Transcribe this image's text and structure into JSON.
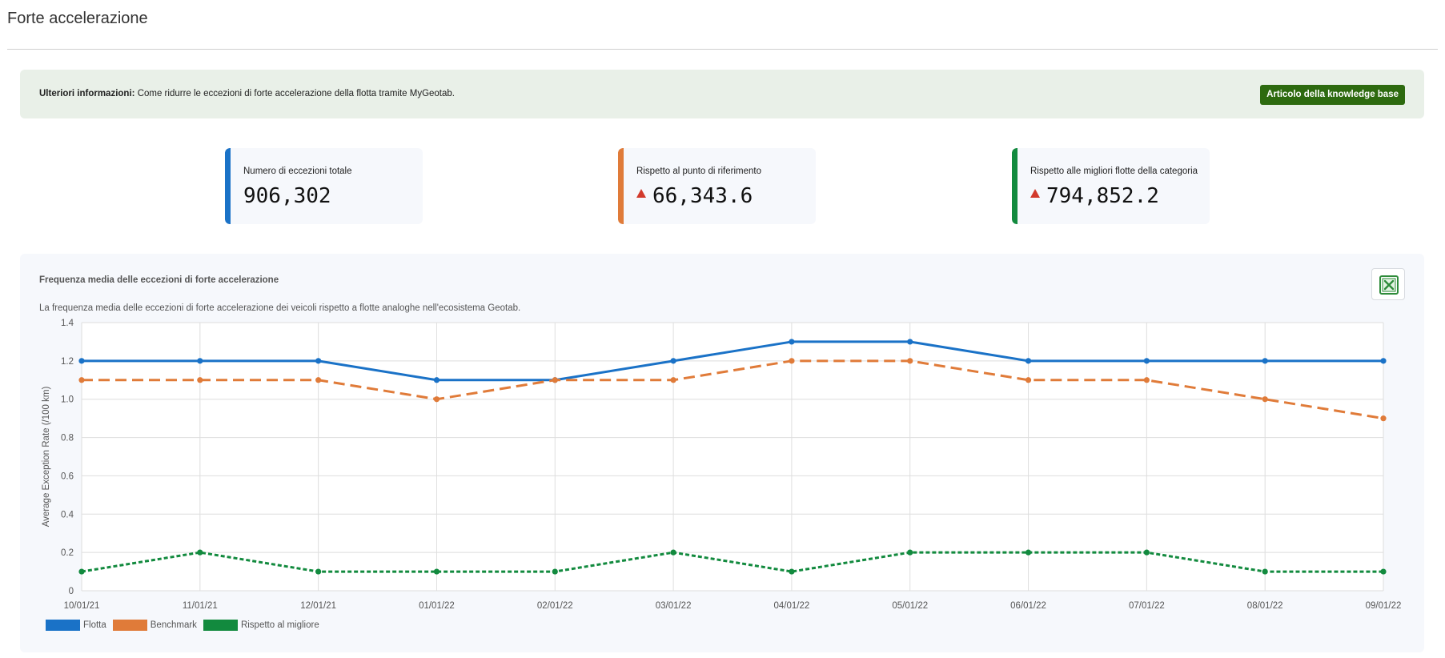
{
  "page": {
    "title": "Forte accelerazione"
  },
  "banner": {
    "prefix": "Ulteriori informazioni:",
    "text": "Come ridurre le eccezioni di forte accelerazione della flotta tramite MyGeotab.",
    "button_label": "Articolo della knowledge base"
  },
  "kpis": [
    {
      "label": "Numero di eccezioni totale",
      "value": "906,302",
      "color": "#1a72c7",
      "arrow": false
    },
    {
      "label": "Rispetto al punto di riferimento",
      "value": "66,343.6",
      "color": "#e07b39",
      "arrow": true
    },
    {
      "label": "Rispetto alle migliori flotte della categoria",
      "value": "794,852.2",
      "color": "#128a3e",
      "arrow": true
    }
  ],
  "chart_panel": {
    "title": "Frequenza media delle eccezioni di forte accelerazione",
    "subtitle": "La frequenza media delle eccezioni di forte accelerazione dei veicoli rispetto a flotte analoghe nell'ecosistema Geotab.",
    "export_icon": "excel-icon"
  },
  "chart_data": {
    "type": "line",
    "x": [
      "10/01/21",
      "11/01/21",
      "12/01/21",
      "01/01/22",
      "02/01/22",
      "03/01/22",
      "04/01/22",
      "05/01/22",
      "06/01/22",
      "07/01/22",
      "08/01/22",
      "09/01/22"
    ],
    "ylabel": "Average Exception Rate (/100 km)",
    "xlabel": "",
    "ylim": [
      0,
      1.4
    ],
    "yticks": [
      "0",
      "0.2",
      "0.4",
      "0.6",
      "0.8",
      "1.0",
      "1.2",
      "1.4"
    ],
    "grid": true,
    "legend_position": "bottom-left",
    "series": [
      {
        "name": "Flotta",
        "values": [
          1.2,
          1.2,
          1.2,
          1.1,
          1.1,
          1.2,
          1.3,
          1.3,
          1.2,
          1.2,
          1.2,
          1.2
        ],
        "color": "#1a72c7",
        "style": "solid"
      },
      {
        "name": "Benchmark",
        "values": [
          1.1,
          1.1,
          1.1,
          1.0,
          1.1,
          1.1,
          1.2,
          1.2,
          1.1,
          1.1,
          1.0,
          0.9
        ],
        "color": "#e07b39",
        "style": "dashed"
      },
      {
        "name": "Rispetto al migliore",
        "values": [
          0.1,
          0.2,
          0.1,
          0.1,
          0.1,
          0.2,
          0.1,
          0.2,
          0.2,
          0.2,
          0.1,
          0.1
        ],
        "color": "#128a3e",
        "style": "dotted"
      }
    ]
  }
}
